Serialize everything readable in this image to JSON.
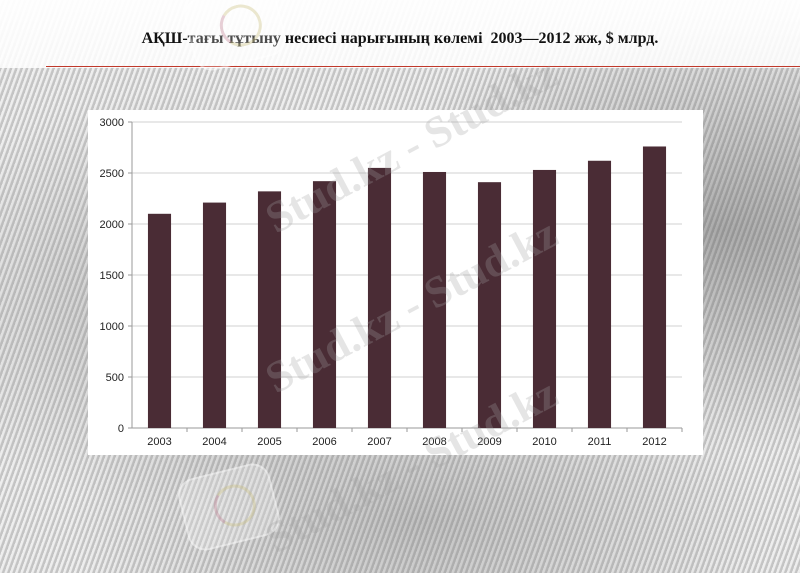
{
  "title": "АҚШ-тағы тұтыну несиесі нарығының көлемі  2003—2012 жж, $ млрд.",
  "watermark": {
    "text": "Stud.kz - Stud.kz"
  },
  "colors": {
    "bar": "#4a2c35",
    "gridline": "#d0d0d0",
    "axis": "#9a9a9a",
    "title_rule": "#c0392b"
  },
  "chart_data": {
    "type": "bar",
    "categories": [
      "2003",
      "2004",
      "2005",
      "2006",
      "2007",
      "2008",
      "2009",
      "2010",
      "2011",
      "2012"
    ],
    "values": [
      2100,
      2210,
      2320,
      2420,
      2550,
      2510,
      2410,
      2530,
      2620,
      2760
    ],
    "ylim": [
      0,
      3000
    ],
    "yticks": [
      "0",
      "500",
      "1000",
      "1500",
      "2000",
      "2500",
      "3000"
    ],
    "xlabel": "",
    "ylabel": "",
    "grid": true,
    "legend": false
  }
}
